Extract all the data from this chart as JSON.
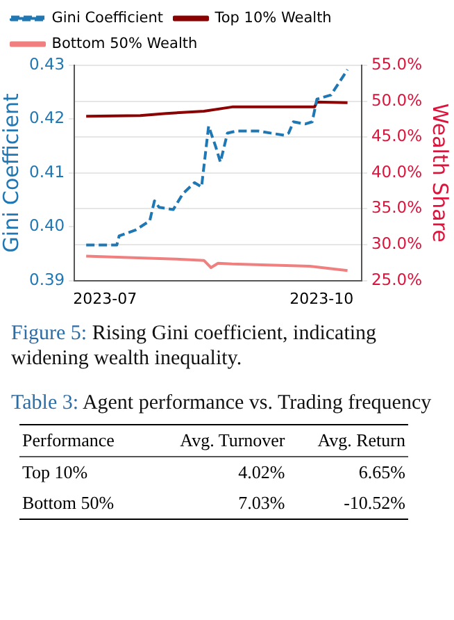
{
  "chart_data": [
    {
      "type": "line",
      "ylabel": "Gini Coefficient",
      "y2label": "Wealth Share",
      "legend": "top",
      "grid": "y2",
      "xlim": [
        "2023-06-18",
        "2023-10-18"
      ],
      "xticks": [
        {
          "value": "2023-07-01",
          "label": "2023-07"
        },
        {
          "value": "2023-10-01",
          "label": "2023-10"
        }
      ],
      "ylim": [
        0.39,
        0.43
      ],
      "yticks": [
        {
          "value": 0.39,
          "label": "0.39"
        },
        {
          "value": 0.4,
          "label": "0.40"
        },
        {
          "value": 0.41,
          "label": "0.41"
        },
        {
          "value": 0.42,
          "label": "0.42"
        },
        {
          "value": 0.43,
          "label": "0.43"
        }
      ],
      "y2lim": [
        25,
        55
      ],
      "y2ticks": [
        {
          "value": 25,
          "label": "25.0%"
        },
        {
          "value": 30,
          "label": "30.0%"
        },
        {
          "value": 35,
          "label": "35.0%"
        },
        {
          "value": 40,
          "label": "40.0%"
        },
        {
          "value": 45,
          "label": "45.0%"
        },
        {
          "value": 50,
          "label": "50.0%"
        },
        {
          "value": 55,
          "label": "55.0%"
        }
      ],
      "annotations": [
        "Figure 5: Rising Gini coefficient, indicating widening wealth inequality."
      ],
      "series": [
        {
          "name": "Gini Coefficient",
          "color": "#1f77b4",
          "line_style": "dashed",
          "x": [
            "2023-06-23",
            "2023-07-06",
            "2023-07-07",
            "2023-07-14",
            "2023-07-20",
            "2023-07-22",
            "2023-07-24",
            "2023-07-30",
            "2023-08-03",
            "2023-08-08",
            "2023-08-11",
            "2023-08-14",
            "2023-08-17",
            "2023-08-19",
            "2023-08-22",
            "2023-08-26",
            "2023-09-04",
            "2023-09-15",
            "2023-09-17",
            "2023-09-19",
            "2023-09-24",
            "2023-09-27",
            "2023-09-29",
            "2023-10-05",
            "2023-10-12"
          ],
          "values": [
            0.3966,
            0.3966,
            0.3983,
            0.3994,
            0.4011,
            0.4048,
            0.4036,
            0.4032,
            0.4061,
            0.4082,
            0.4074,
            0.4187,
            0.4149,
            0.412,
            0.4174,
            0.4178,
            0.4178,
            0.417,
            0.4174,
            0.4195,
            0.4191,
            0.4195,
            0.4237,
            0.4245,
            0.4292
          ]
        },
        {
          "name": "Top 10% Wealth",
          "color": "#8b0000",
          "line_style": "solid",
          "axis": "y2",
          "x": [
            "2023-06-23",
            "2023-07-16",
            "2023-07-27",
            "2023-08-12",
            "2023-08-24",
            "2023-09-28",
            "2023-09-29",
            "2023-10-12"
          ],
          "values": [
            47.9,
            48.0,
            48.3,
            48.6,
            49.2,
            49.2,
            49.9,
            49.8
          ]
        },
        {
          "name": "Bottom 50% Wealth",
          "color": "#f08080",
          "line_style": "solid",
          "axis": "y2",
          "x": [
            "2023-06-23",
            "2023-07-31",
            "2023-08-12",
            "2023-08-15",
            "2023-08-18",
            "2023-08-24",
            "2023-09-26",
            "2023-10-12"
          ],
          "values": [
            28.4,
            28.0,
            27.8,
            26.8,
            27.4,
            27.3,
            27.0,
            26.4
          ]
        }
      ]
    },
    {
      "type": "other",
      "title": "Table 3: Agent performance vs. Trading frequency",
      "ylabel": "Performance",
      "categories": [
        "Avg. Turnover",
        "Avg. Return"
      ],
      "y_categories": [
        "Top 10%",
        "Bottom 50%"
      ],
      "cell_labels": [
        [
          "4.02%",
          "6.65%"
        ],
        [
          "7.03%",
          "-10.52%"
        ]
      ]
    }
  ]
}
